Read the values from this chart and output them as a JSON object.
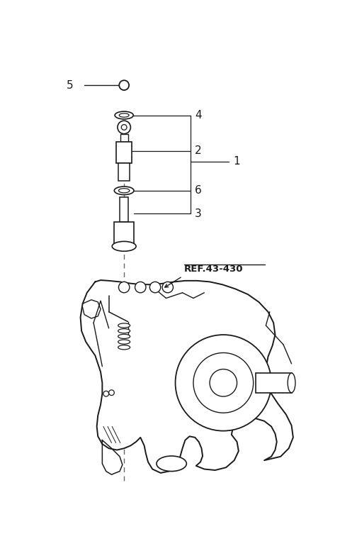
{
  "bg_color": "#ffffff",
  "lc": "#1a1a1a",
  "figsize": [
    4.8,
    7.77
  ],
  "dpi": 100,
  "ref_label": "REF.43-430",
  "xlim": [
    0,
    480
  ],
  "ylim": [
    0,
    777
  ]
}
